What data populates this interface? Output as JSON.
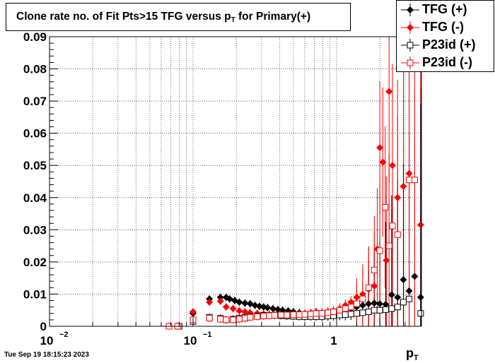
{
  "title": {
    "main": "Clone rate no. of Fit Pts>15 TFG versus p",
    "sub": "T",
    "tail": " for Primary(+)"
  },
  "footer": "Tue Sep 19 18:15:23 2023",
  "xaxis_title": {
    "main": "p",
    "sub": "T"
  },
  "chart_data": {
    "type": "scatter",
    "title": "Clone rate no. of Fit Pts>15 TFG versus pT for Primary(+)",
    "xlabel": "pT",
    "ylabel": "",
    "xscale": "log",
    "xlim": [
      0.01,
      3.9
    ],
    "ylim": [
      0,
      0.09
    ],
    "grid": true,
    "legend_position": "top-right",
    "x_tick_labels": [
      {
        "base": "10",
        "exp": "−2",
        "value": 0.01
      },
      {
        "base": "10",
        "exp": "−1",
        "value": 0.1
      },
      {
        "base": "1",
        "exp": "",
        "value": 1
      }
    ],
    "y_tick_labels": [
      "0",
      "0.01",
      "0.02",
      "0.03",
      "0.04",
      "0.05",
      "0.06",
      "0.07",
      "0.08",
      "0.09"
    ],
    "y_tick_values": [
      0,
      0.01,
      0.02,
      0.03,
      0.04,
      0.05,
      0.06,
      0.07,
      0.08,
      0.09
    ],
    "series": [
      {
        "name": "TFG (+)",
        "marker": "diamond-filled",
        "color": "#000000",
        "points": [
          {
            "x": 0.08,
            "y": 0.0
          },
          {
            "x": 0.1,
            "y": 0.004
          },
          {
            "x": 0.13,
            "y": 0.0085
          },
          {
            "x": 0.155,
            "y": 0.009
          },
          {
            "x": 0.17,
            "y": 0.009
          },
          {
            "x": 0.18,
            "y": 0.0085
          },
          {
            "x": 0.195,
            "y": 0.008
          },
          {
            "x": 0.21,
            "y": 0.0075
          },
          {
            "x": 0.23,
            "y": 0.0072
          },
          {
            "x": 0.25,
            "y": 0.007
          },
          {
            "x": 0.27,
            "y": 0.0065
          },
          {
            "x": 0.29,
            "y": 0.0062
          },
          {
            "x": 0.31,
            "y": 0.006
          },
          {
            "x": 0.33,
            "y": 0.0058
          },
          {
            "x": 0.36,
            "y": 0.0055
          },
          {
            "x": 0.39,
            "y": 0.0052
          },
          {
            "x": 0.42,
            "y": 0.005
          },
          {
            "x": 0.46,
            "y": 0.0048
          },
          {
            "x": 0.5,
            "y": 0.0045
          },
          {
            "x": 0.55,
            "y": 0.0042
          },
          {
            "x": 0.6,
            "y": 0.004
          },
          {
            "x": 0.66,
            "y": 0.0038
          },
          {
            "x": 0.72,
            "y": 0.0037
          },
          {
            "x": 0.79,
            "y": 0.0036
          },
          {
            "x": 0.87,
            "y": 0.0036
          },
          {
            "x": 0.95,
            "y": 0.004
          },
          {
            "x": 1.05,
            "y": 0.0045
          },
          {
            "x": 1.15,
            "y": 0.005
          },
          {
            "x": 1.26,
            "y": 0.0055
          },
          {
            "x": 1.38,
            "y": 0.006
          },
          {
            "x": 1.52,
            "y": 0.0065
          },
          {
            "x": 1.67,
            "y": 0.007
          },
          {
            "x": 1.83,
            "y": 0.0072
          },
          {
            "x": 2.0,
            "y": 0.007
          },
          {
            "x": 2.2,
            "y": 0.0068
          },
          {
            "x": 2.42,
            "y": 0.0098
          },
          {
            "x": 2.66,
            "y": 0.009
          },
          {
            "x": 2.92,
            "y": 0.0145
          },
          {
            "x": 3.2,
            "y": 0.011
          },
          {
            "x": 3.5,
            "y": 0.0155
          },
          {
            "x": 3.85,
            "y": 0.009
          }
        ]
      },
      {
        "name": "TFG (-)",
        "marker": "diamond-filled",
        "color": "#ff0000",
        "points": [
          {
            "x": 0.068,
            "y": 0.0
          },
          {
            "x": 0.078,
            "y": 0.0
          },
          {
            "x": 0.1,
            "y": 0.0045
          },
          {
            "x": 0.13,
            "y": 0.0075
          },
          {
            "x": 0.155,
            "y": 0.0078
          },
          {
            "x": 0.17,
            "y": 0.006
          },
          {
            "x": 0.19,
            "y": 0.0055
          },
          {
            "x": 0.21,
            "y": 0.0048
          },
          {
            "x": 0.23,
            "y": 0.0045
          },
          {
            "x": 0.25,
            "y": 0.0042
          },
          {
            "x": 0.28,
            "y": 0.004
          },
          {
            "x": 0.31,
            "y": 0.0038
          },
          {
            "x": 0.34,
            "y": 0.0037
          },
          {
            "x": 0.37,
            "y": 0.0036
          },
          {
            "x": 0.41,
            "y": 0.0035
          },
          {
            "x": 0.45,
            "y": 0.0035
          },
          {
            "x": 0.5,
            "y": 0.0036
          },
          {
            "x": 0.55,
            "y": 0.0038
          },
          {
            "x": 0.6,
            "y": 0.004
          },
          {
            "x": 0.66,
            "y": 0.0042
          },
          {
            "x": 0.72,
            "y": 0.0045
          },
          {
            "x": 0.79,
            "y": 0.0042
          },
          {
            "x": 0.87,
            "y": 0.0045
          },
          {
            "x": 0.95,
            "y": 0.0048
          },
          {
            "x": 1.05,
            "y": 0.0055
          },
          {
            "x": 1.15,
            "y": 0.0065
          },
          {
            "x": 1.26,
            "y": 0.0075
          },
          {
            "x": 1.38,
            "y": 0.009
          },
          {
            "x": 1.52,
            "y": 0.01
          },
          {
            "x": 1.67,
            "y": 0.0115
          },
          {
            "x": 1.83,
            "y": 0.0125
          },
          {
            "x": 1.92,
            "y": 0.024
          },
          {
            "x": 2.0,
            "y": 0.0555
          },
          {
            "x": 2.1,
            "y": 0.051
          },
          {
            "x": 2.22,
            "y": 0.0205
          },
          {
            "x": 2.32,
            "y": 0.073
          },
          {
            "x": 2.45,
            "y": 0.05
          },
          {
            "x": 2.66,
            "y": 0.04
          },
          {
            "x": 2.92,
            "y": 0.0435
          },
          {
            "x": 3.2,
            "y": 0.0475
          },
          {
            "x": 3.85,
            "y": 0.0315
          }
        ]
      },
      {
        "name": "P23id (+)",
        "marker": "square-open",
        "color": "#000000",
        "points": [
          {
            "x": 0.08,
            "y": 0.0
          },
          {
            "x": 0.1,
            "y": 0.0015
          },
          {
            "x": 0.13,
            "y": 0.0028
          },
          {
            "x": 0.155,
            "y": 0.0025
          },
          {
            "x": 0.17,
            "y": 0.002
          },
          {
            "x": 0.19,
            "y": 0.0022
          },
          {
            "x": 0.21,
            "y": 0.0025
          },
          {
            "x": 0.23,
            "y": 0.0028
          },
          {
            "x": 0.25,
            "y": 0.003
          },
          {
            "x": 0.28,
            "y": 0.0032
          },
          {
            "x": 0.31,
            "y": 0.0034
          },
          {
            "x": 0.34,
            "y": 0.0034
          },
          {
            "x": 0.37,
            "y": 0.0034
          },
          {
            "x": 0.41,
            "y": 0.0033
          },
          {
            "x": 0.45,
            "y": 0.0032
          },
          {
            "x": 0.5,
            "y": 0.0031
          },
          {
            "x": 0.55,
            "y": 0.003
          },
          {
            "x": 0.6,
            "y": 0.003
          },
          {
            "x": 0.66,
            "y": 0.003
          },
          {
            "x": 0.72,
            "y": 0.003
          },
          {
            "x": 0.79,
            "y": 0.003
          },
          {
            "x": 0.87,
            "y": 0.0032
          },
          {
            "x": 0.95,
            "y": 0.0033
          },
          {
            "x": 1.05,
            "y": 0.0035
          },
          {
            "x": 1.15,
            "y": 0.0036
          },
          {
            "x": 1.26,
            "y": 0.0038
          },
          {
            "x": 1.38,
            "y": 0.004
          },
          {
            "x": 1.52,
            "y": 0.0042
          },
          {
            "x": 1.67,
            "y": 0.0045
          },
          {
            "x": 1.83,
            "y": 0.005
          },
          {
            "x": 2.0,
            "y": 0.005
          },
          {
            "x": 2.2,
            "y": 0.0052
          },
          {
            "x": 2.42,
            "y": 0.0055
          },
          {
            "x": 2.66,
            "y": 0.006
          },
          {
            "x": 2.92,
            "y": 0.0075
          },
          {
            "x": 3.2,
            "y": 0.0085
          },
          {
            "x": 3.85,
            "y": 0.004
          }
        ]
      },
      {
        "name": "P23id (-)",
        "marker": "square-open",
        "color": "#ff0000",
        "points": [
          {
            "x": 0.068,
            "y": 0.0
          },
          {
            "x": 0.078,
            "y": 0.0
          },
          {
            "x": 0.1,
            "y": 0.002
          },
          {
            "x": 0.13,
            "y": 0.0025
          },
          {
            "x": 0.155,
            "y": 0.0022
          },
          {
            "x": 0.17,
            "y": 0.002
          },
          {
            "x": 0.19,
            "y": 0.002
          },
          {
            "x": 0.21,
            "y": 0.0022
          },
          {
            "x": 0.23,
            "y": 0.0025
          },
          {
            "x": 0.25,
            "y": 0.0028
          },
          {
            "x": 0.28,
            "y": 0.003
          },
          {
            "x": 0.31,
            "y": 0.0032
          },
          {
            "x": 0.34,
            "y": 0.0033
          },
          {
            "x": 0.37,
            "y": 0.0034
          },
          {
            "x": 0.41,
            "y": 0.0035
          },
          {
            "x": 0.45,
            "y": 0.0035
          },
          {
            "x": 0.5,
            "y": 0.0036
          },
          {
            "x": 0.55,
            "y": 0.0036
          },
          {
            "x": 0.6,
            "y": 0.0037
          },
          {
            "x": 0.66,
            "y": 0.0038
          },
          {
            "x": 0.72,
            "y": 0.004
          },
          {
            "x": 0.79,
            "y": 0.004
          },
          {
            "x": 0.87,
            "y": 0.0042
          },
          {
            "x": 0.95,
            "y": 0.0045
          },
          {
            "x": 1.05,
            "y": 0.005
          },
          {
            "x": 1.15,
            "y": 0.0055
          },
          {
            "x": 1.26,
            "y": 0.006
          },
          {
            "x": 1.38,
            "y": 0.007
          },
          {
            "x": 1.52,
            "y": 0.0085
          },
          {
            "x": 1.67,
            "y": 0.012
          },
          {
            "x": 1.83,
            "y": 0.0175
          },
          {
            "x": 2.0,
            "y": 0.0235
          },
          {
            "x": 2.18,
            "y": 0.037
          },
          {
            "x": 2.32,
            "y": 0.025
          },
          {
            "x": 2.45,
            "y": 0.0312
          },
          {
            "x": 2.66,
            "y": 0.0285
          },
          {
            "x": 3.2,
            "y": 0.0455
          },
          {
            "x": 3.5,
            "y": 0.0455
          }
        ]
      }
    ]
  }
}
